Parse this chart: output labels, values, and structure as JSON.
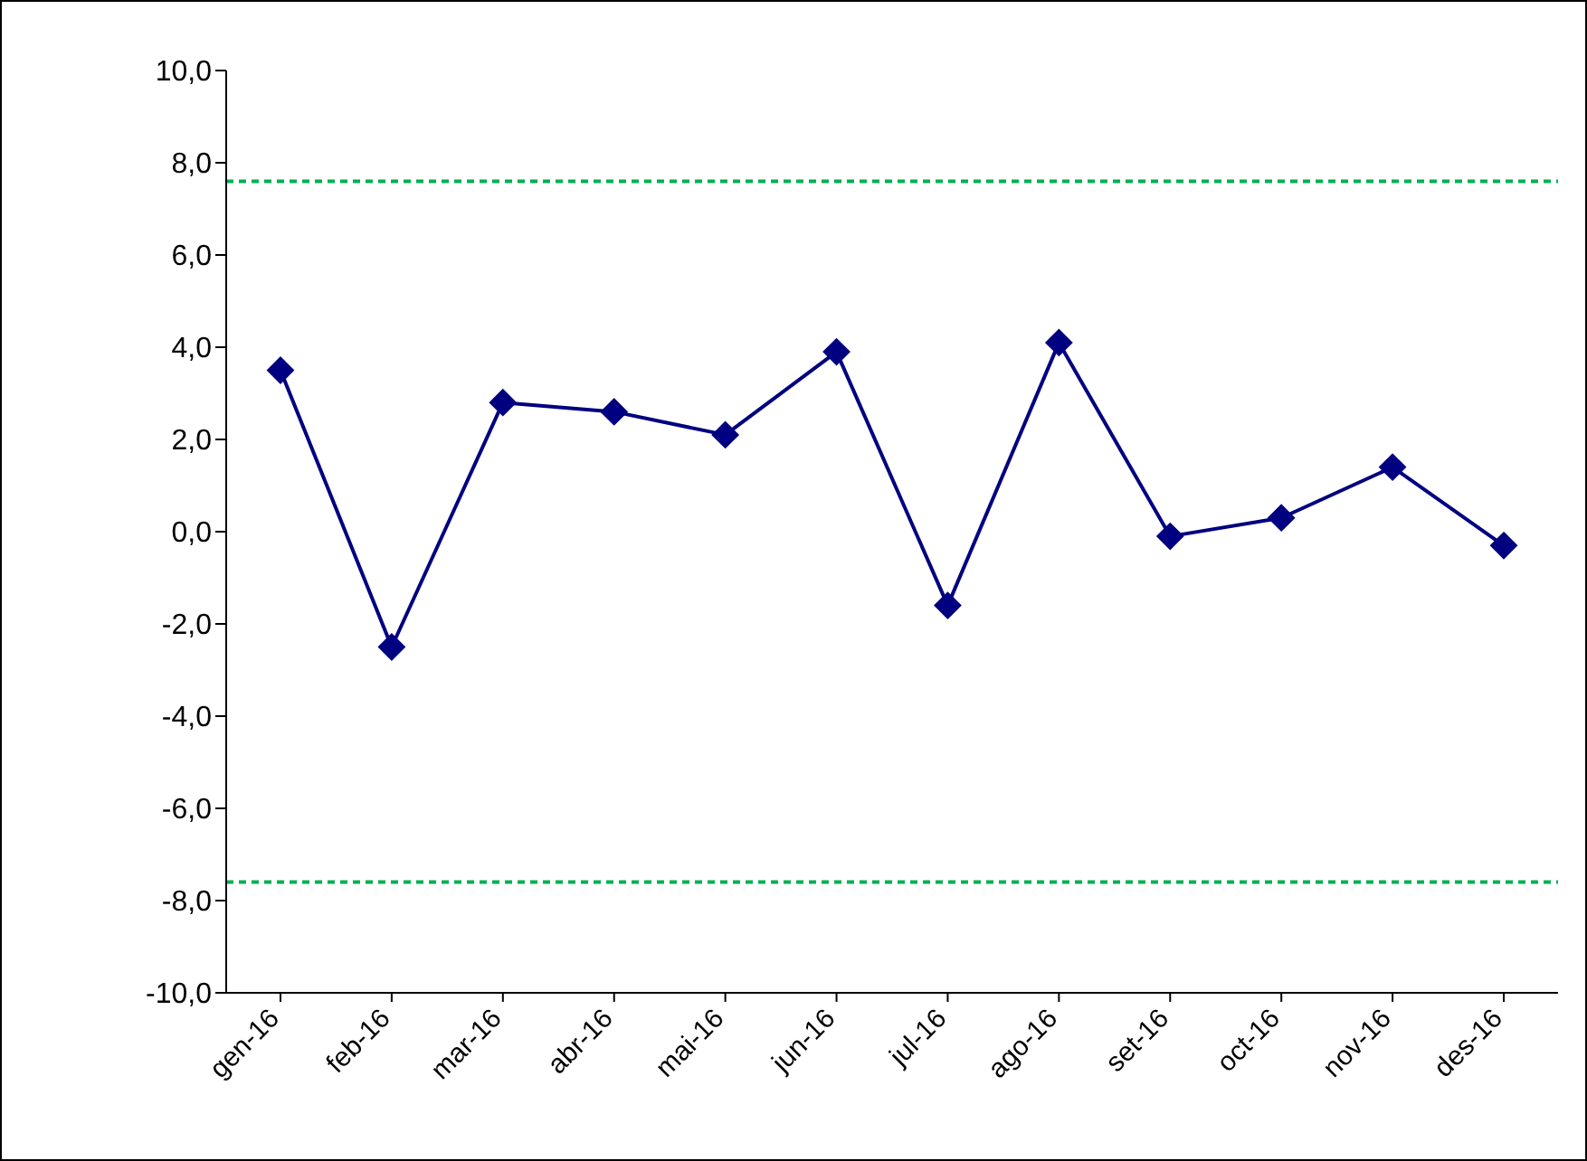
{
  "chart_data": {
    "type": "line",
    "categories": [
      "gen-16",
      "feb-16",
      "mar-16",
      "abr-16",
      "mai-16",
      "jun-16",
      "jul-16",
      "ago-16",
      "set-16",
      "oct-16",
      "nov-16",
      "des-16"
    ],
    "series": [
      {
        "color": "#000080",
        "values": [
          3.5,
          -2.5,
          2.8,
          2.6,
          2.1,
          3.9,
          -1.6,
          4.1,
          -0.1,
          0.3,
          1.4,
          -0.3
        ]
      }
    ],
    "ylim": [
      -10,
      10
    ],
    "yticks": [
      {
        "value": -10,
        "label": "-10,0"
      },
      {
        "value": -8,
        "label": "-8,0"
      },
      {
        "value": -6,
        "label": "-6,0"
      },
      {
        "value": -4,
        "label": "-4,0"
      },
      {
        "value": -2,
        "label": "-2,0"
      },
      {
        "value": 0,
        "label": "0,0"
      },
      {
        "value": 2,
        "label": "2,0"
      },
      {
        "value": 4,
        "label": "4,0"
      },
      {
        "value": 6,
        "label": "6,0"
      },
      {
        "value": 8,
        "label": "8,0"
      },
      {
        "value": 10,
        "label": "10,0"
      }
    ],
    "ref_lines": [
      {
        "axis": "y",
        "value": 7.6,
        "color": "#00b050",
        "line_style": "dashed"
      },
      {
        "axis": "y",
        "value": -7.6,
        "color": "#00b050",
        "line_style": "dashed"
      }
    ],
    "marker": "diamond",
    "line_style": "solid",
    "grid": false,
    "legend": false
  }
}
